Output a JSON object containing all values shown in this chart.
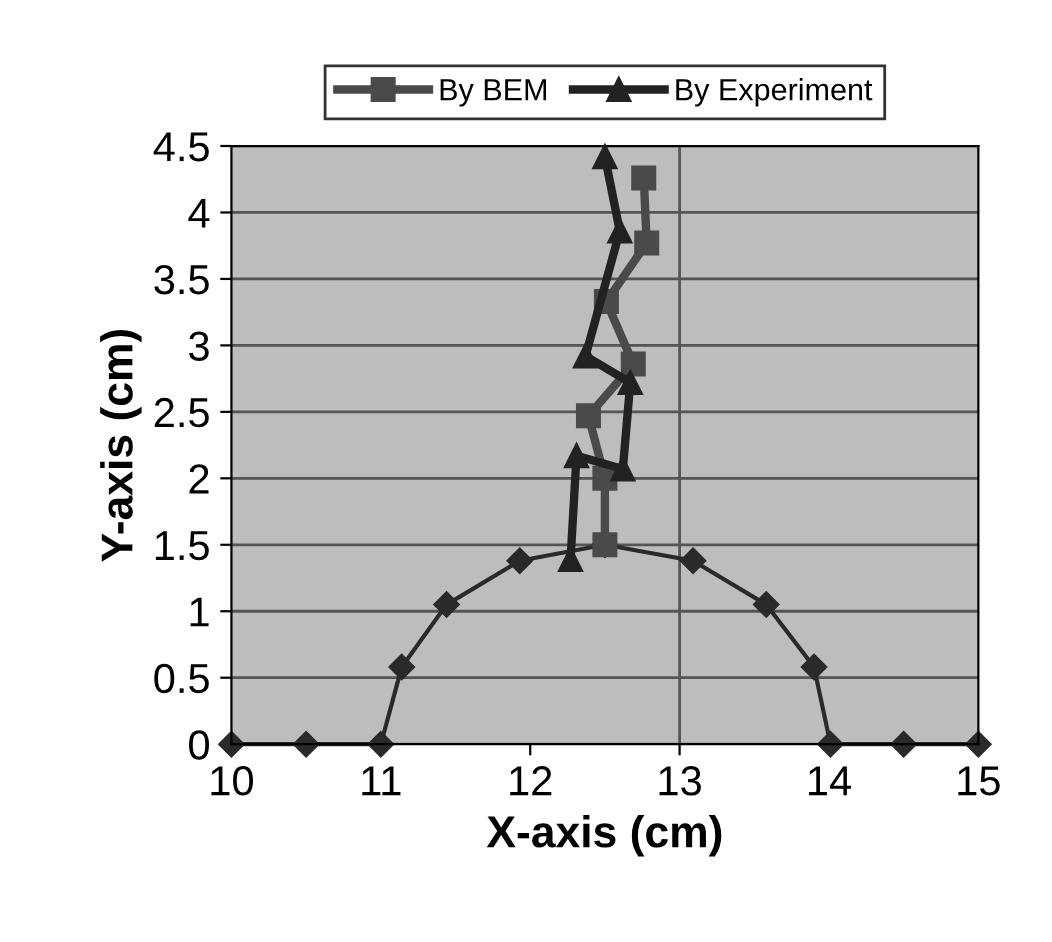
{
  "chart_data": {
    "type": "line",
    "xlabel": "X-axis (cm)",
    "ylabel": "Y-axis (cm)",
    "xlim": [
      10,
      15
    ],
    "xticks": [
      10,
      11,
      12,
      13,
      14,
      15
    ],
    "ylim": [
      0,
      4.5
    ],
    "yticks": [
      0,
      0.5,
      1,
      1.5,
      2,
      2.5,
      3,
      3.5,
      4,
      4.5
    ],
    "grid": "y",
    "legend": "top",
    "line_style": "solid",
    "ref_lines": [
      {
        "axis": "x",
        "value": 13,
        "color": "#555555"
      }
    ],
    "series": [
      {
        "name": "By BEM",
        "color": "#4a4a4a",
        "marker": "square",
        "x": [
          12.5,
          12.5,
          12.39,
          12.69,
          12.51,
          12.78,
          12.76
        ],
        "values": [
          1.5,
          2.0,
          2.47,
          2.86,
          3.33,
          3.77,
          4.26
        ]
      },
      {
        "name": "By Experiment",
        "color": "#222222",
        "marker": "triangle",
        "x": [
          12.27,
          12.31,
          12.62,
          12.67,
          12.37,
          12.6,
          12.5
        ],
        "values": [
          1.39,
          2.17,
          2.07,
          2.72,
          2.92,
          3.86,
          4.42
        ]
      },
      {
        "color": "#2a2a2a",
        "marker": "diamond",
        "x": [
          10,
          10.5,
          11,
          11.14,
          11.44,
          11.93,
          12.5,
          13.09,
          13.58,
          13.9,
          14.01,
          14.5,
          15
        ],
        "values": [
          0,
          0,
          0,
          0.58,
          1.05,
          1.38,
          1.5,
          1.38,
          1.05,
          0.58,
          0,
          0,
          0
        ]
      }
    ]
  }
}
